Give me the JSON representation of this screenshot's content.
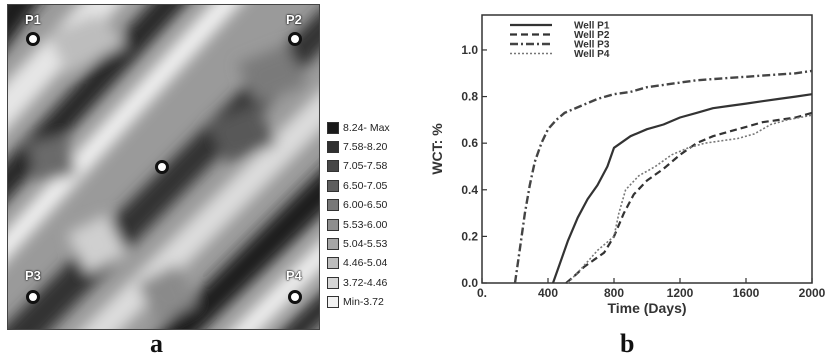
{
  "panel_a": {
    "letter": "a",
    "wells": [
      {
        "name": "P1"
      },
      {
        "name": "P2"
      },
      {
        "name": "P3"
      },
      {
        "name": "P4"
      }
    ],
    "legend": [
      {
        "label": "8.24- Max",
        "color": "#1a1a1a"
      },
      {
        "label": "7.58-8.20",
        "color": "#303030"
      },
      {
        "label": "7.05-7.58",
        "color": "#474747"
      },
      {
        "label": "6.50-7.05",
        "color": "#5e5e5e"
      },
      {
        "label": "6.00-6.50",
        "color": "#777777"
      },
      {
        "label": "5.53-6.00",
        "color": "#8e8e8e"
      },
      {
        "label": "5.04-5.53",
        "color": "#a6a6a6"
      },
      {
        "label": "4.46-5.04",
        "color": "#bdbdbd"
      },
      {
        "label": "3.72-4.46",
        "color": "#d6d6d6"
      },
      {
        "label": "Min-3.72",
        "color": "#f2f2f2"
      }
    ]
  },
  "panel_b": {
    "letter": "b"
  },
  "chart_data": {
    "type": "line",
    "xlabel": "Time (Days)",
    "ylabel": "WCT: %",
    "xlim": [
      0,
      2000
    ],
    "ylim": [
      0,
      1.15
    ],
    "xticks": [
      "0.",
      "400",
      "800",
      "1200",
      "1600",
      "2000"
    ],
    "yticks": [
      "0.0",
      "0.2",
      "0.4",
      "0.6",
      "0.8",
      "1.0"
    ],
    "legend_position": "top-left",
    "series": [
      {
        "name": "Well P1",
        "style": "solid",
        "x": [
          430,
          470,
          520,
          580,
          640,
          700,
          760,
          800,
          900,
          1000,
          1100,
          1200,
          1300,
          1400,
          1500,
          1600,
          1700,
          1800,
          1900,
          2000
        ],
        "y": [
          0.0,
          0.08,
          0.18,
          0.28,
          0.36,
          0.42,
          0.5,
          0.58,
          0.63,
          0.66,
          0.68,
          0.71,
          0.73,
          0.75,
          0.76,
          0.77,
          0.78,
          0.79,
          0.8,
          0.81
        ]
      },
      {
        "name": "Well P2",
        "style": "dashed",
        "x": [
          510,
          560,
          620,
          680,
          740,
          800,
          860,
          920,
          1000,
          1100,
          1200,
          1300,
          1400,
          1500,
          1600,
          1700,
          1800,
          1900,
          2000
        ],
        "y": [
          0.0,
          0.03,
          0.07,
          0.1,
          0.13,
          0.2,
          0.3,
          0.38,
          0.44,
          0.49,
          0.55,
          0.6,
          0.63,
          0.65,
          0.67,
          0.69,
          0.7,
          0.71,
          0.73
        ]
      },
      {
        "name": "Well P3",
        "style": "dashdot",
        "x": [
          200,
          230,
          260,
          290,
          320,
          360,
          400,
          450,
          500,
          600,
          700,
          800,
          900,
          1000,
          1100,
          1200,
          1300,
          1400,
          1500,
          1600,
          1700,
          1800,
          1900,
          2000
        ],
        "y": [
          0.0,
          0.15,
          0.3,
          0.42,
          0.52,
          0.6,
          0.66,
          0.7,
          0.73,
          0.76,
          0.79,
          0.81,
          0.82,
          0.84,
          0.85,
          0.86,
          0.87,
          0.875,
          0.88,
          0.885,
          0.89,
          0.895,
          0.9,
          0.91
        ]
      },
      {
        "name": "Well P4",
        "style": "dotted",
        "x": [
          520,
          560,
          600,
          650,
          700,
          750,
          800,
          830,
          870,
          950,
          1050,
          1150,
          1250,
          1350,
          1450,
          1550,
          1650,
          1750,
          1850,
          2000
        ],
        "y": [
          0.0,
          0.03,
          0.06,
          0.1,
          0.14,
          0.17,
          0.2,
          0.3,
          0.4,
          0.46,
          0.5,
          0.55,
          0.58,
          0.6,
          0.61,
          0.62,
          0.64,
          0.68,
          0.7,
          0.72
        ]
      }
    ]
  }
}
